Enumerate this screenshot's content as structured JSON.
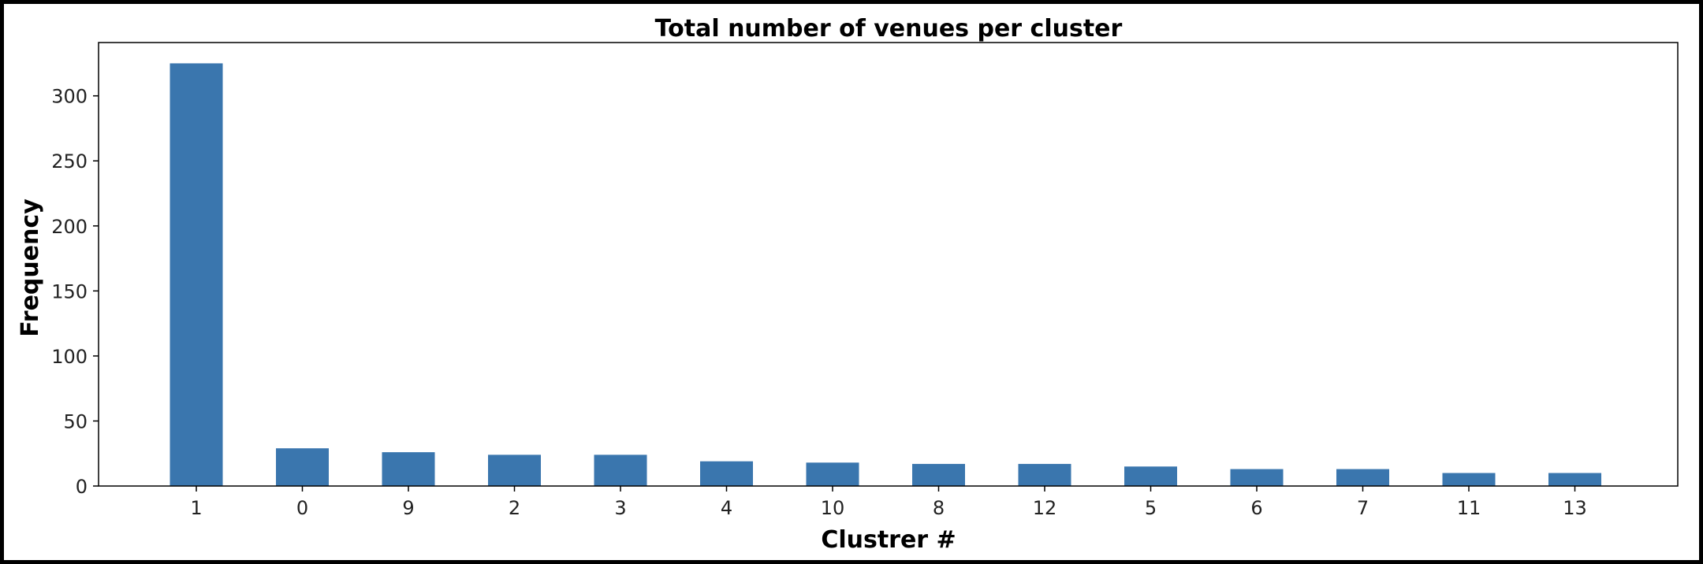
{
  "chart_data": {
    "type": "bar",
    "title": "Total number of venues per cluster",
    "xlabel": "Clustrer #",
    "ylabel": "Frequency",
    "categories": [
      "1",
      "0",
      "9",
      "2",
      "3",
      "4",
      "10",
      "8",
      "12",
      "5",
      "6",
      "7",
      "11",
      "13"
    ],
    "values": [
      325,
      29,
      26,
      24,
      24,
      19,
      18,
      17,
      17,
      15,
      13,
      13,
      10,
      10
    ],
    "ylim": [
      0,
      341
    ],
    "yticks": [
      0,
      50,
      100,
      150,
      200,
      250,
      300
    ],
    "bar_color": "#3a76ae",
    "grid": false,
    "legend": "none"
  }
}
